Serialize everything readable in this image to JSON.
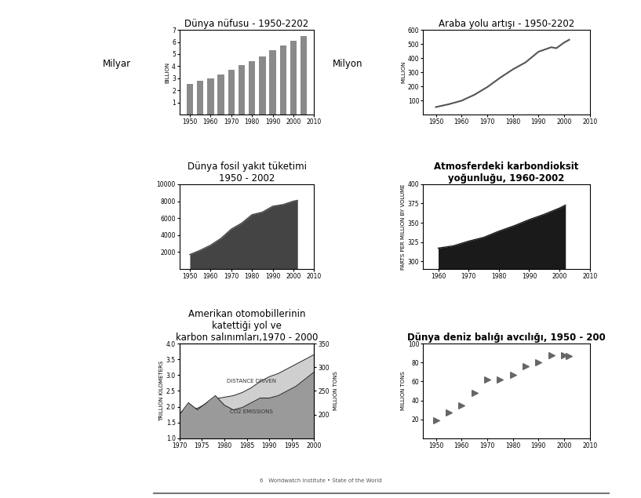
{
  "chart_data": [
    {
      "type": "bar",
      "title": "Dünya nüfusu - 1950-2202",
      "side_label": "Milyar",
      "y_label": "BILLION",
      "x": [
        1950,
        1955,
        1960,
        1965,
        1970,
        1975,
        1980,
        1985,
        1990,
        1995,
        2000,
        2005
      ],
      "values": [
        2.5,
        2.8,
        3.0,
        3.3,
        3.7,
        4.1,
        4.4,
        4.8,
        5.3,
        5.7,
        6.1,
        6.5
      ],
      "color": "#8a8a8a",
      "xlim": [
        1945,
        2010
      ],
      "xticks": [
        1950,
        1960,
        1970,
        1980,
        1990,
        2000,
        2010
      ],
      "ylim": [
        0,
        7
      ],
      "yticks": [
        1,
        2,
        3,
        4,
        5,
        6,
        7
      ]
    },
    {
      "type": "line",
      "title": "Araba yolu artışı - 1950-2202",
      "side_label": "Milyon",
      "y_label": "MILLION",
      "x": [
        1950,
        1955,
        1960,
        1965,
        1970,
        1975,
        1980,
        1985,
        1990,
        1995,
        1997,
        2000,
        2002
      ],
      "values": [
        53,
        73,
        98,
        140,
        194,
        260,
        320,
        370,
        445,
        477,
        470,
        510,
        530
      ],
      "color": "#555555",
      "xlim": [
        1945,
        2010
      ],
      "xticks": [
        1950,
        1960,
        1970,
        1980,
        1990,
        2000,
        2010
      ],
      "ylim": [
        0,
        600
      ],
      "yticks": [
        100,
        200,
        300,
        400,
        500,
        600
      ]
    },
    {
      "type": "area",
      "title": "Dünya fosil yakıt tüketimi\n1950 - 2002",
      "x": [
        1950,
        1955,
        1960,
        1965,
        1970,
        1975,
        1980,
        1985,
        1990,
        1995,
        2000,
        2002
      ],
      "values": [
        1700,
        2200,
        2800,
        3600,
        4700,
        5400,
        6400,
        6700,
        7400,
        7600,
        8000,
        8100
      ],
      "color": "#444444",
      "xlim": [
        1945,
        2010
      ],
      "xticks": [
        1950,
        1960,
        1970,
        1980,
        1990,
        2000,
        2010
      ],
      "ylim": [
        0,
        10000
      ],
      "yticks": [
        2000,
        4000,
        6000,
        8000,
        10000
      ]
    },
    {
      "type": "area",
      "title": "Atmosferdeki karbondioksit\nyoğunluğu, 1960-2002",
      "y_label": "PARTS PER MILLION BY VOLUME",
      "x": [
        1960,
        1965,
        1970,
        1975,
        1980,
        1985,
        1990,
        1995,
        2000,
        2002
      ],
      "values": [
        317,
        320,
        326,
        331,
        339,
        346,
        354,
        361,
        369,
        373
      ],
      "color": "#1a1a1a",
      "xlim": [
        1955,
        2010
      ],
      "xticks": [
        1960,
        1970,
        1980,
        1990,
        2000,
        2010
      ],
      "ylim": [
        290,
        400
      ],
      "yticks": [
        300,
        325,
        350,
        375,
        400
      ]
    },
    {
      "type": "area",
      "title": "Amerikan otomobillerinin\nkatettiği yol ve\nkarbon salınımları,1970 - 2000",
      "y_label": "TRILLION KILOMETERS",
      "y2_label": "MILLION TONS",
      "x": [
        1970,
        1972,
        1974,
        1976,
        1978,
        1980,
        1982,
        1984,
        1986,
        1988,
        1990,
        1992,
        1994,
        1996,
        1998,
        2000
      ],
      "series": [
        {
          "name": "DISTANCE DRIVEN",
          "color": "#cfcfcf",
          "values": [
            1.8,
            1.95,
            1.95,
            2.1,
            2.25,
            2.3,
            2.35,
            2.45,
            2.6,
            2.8,
            2.95,
            3.05,
            3.2,
            3.35,
            3.5,
            3.65
          ]
        },
        {
          "name": "CO2 EMISSIONS",
          "color": "#9a9a9a",
          "axis": "y2",
          "values": [
            200,
            225,
            210,
            225,
            240,
            220,
            210,
            215,
            225,
            235,
            235,
            240,
            250,
            260,
            275,
            290
          ]
        }
      ],
      "xlim": [
        1970,
        2000
      ],
      "xticks": [
        1970,
        1975,
        1980,
        1985,
        1990,
        1995,
        2000
      ],
      "ylim": [
        1.0,
        4.0
      ],
      "yticks": [
        {
          "value": 1.0,
          "label": "1.0"
        },
        {
          "value": 1.5,
          "label": "1.5"
        },
        {
          "value": 2.0,
          "label": "2.0"
        },
        {
          "value": 2.5,
          "label": "2.5"
        },
        {
          "value": 3.0,
          "label": "3.0"
        },
        {
          "value": 3.5,
          "label": "3.5"
        },
        {
          "value": 4.0,
          "label": "4.0"
        }
      ],
      "y2lim": [
        150,
        350
      ],
      "y2ticks": [
        200,
        250,
        300,
        350
      ]
    },
    {
      "type": "scatter",
      "title": "Dünya deniz balığı avcılığı, 1950 - 200",
      "y_label": "MILLION TONS",
      "x": [
        1950,
        1955,
        1960,
        1965,
        1970,
        1975,
        1980,
        1985,
        1990,
        1995,
        2000,
        2002
      ],
      "values": [
        19,
        27,
        35,
        48,
        62,
        62,
        67,
        76,
        80,
        88,
        88,
        87
      ],
      "color": "#666666",
      "marker": "fish",
      "xlim": [
        1945,
        2010
      ],
      "xticks": [
        1950,
        1960,
        1970,
        1980,
        1990,
        2000,
        2010
      ],
      "ylim": [
        0,
        100
      ],
      "yticks": [
        20,
        40,
        60,
        80,
        100
      ]
    }
  ],
  "footer": "6   Worldwatch Institute • State of the World"
}
